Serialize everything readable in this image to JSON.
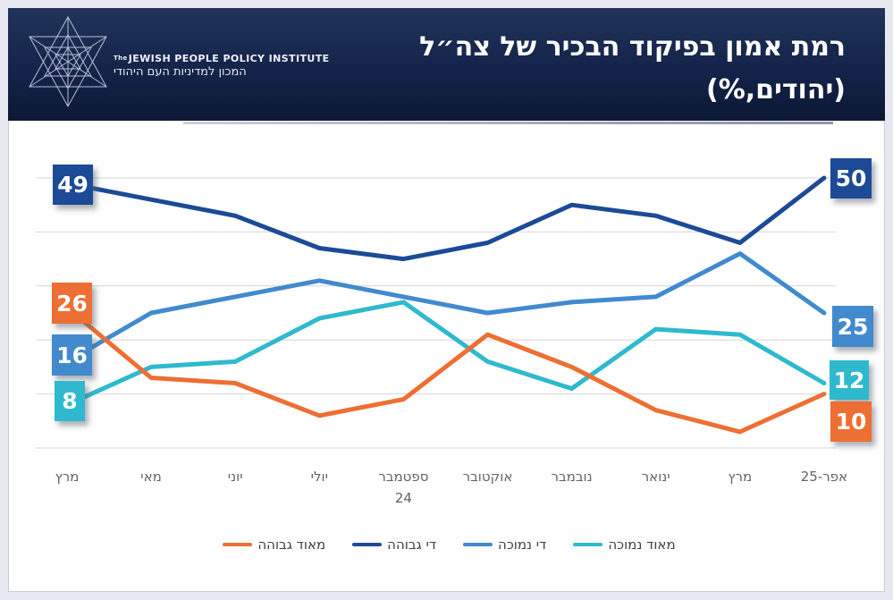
{
  "page": {
    "background": "#e7e8ef",
    "slide_border": "#c9cdd7"
  },
  "header": {
    "title_line1": "רמת אמון בפיקוד הבכיר של צה״ל",
    "title_line2": "(יהודים,%)",
    "logo_text_the": "The",
    "logo_text_en": "JEWISH PEOPLE POLICY INSTITUTE",
    "logo_text_he": "המכון למדיניות העם היהודי"
  },
  "colors": {
    "navy": "#1c4a96",
    "blue": "#418ace",
    "cyan": "#2fb9ce",
    "orange": "#ed6f33",
    "grid": "#d6d6d6",
    "axis_text": "#636363",
    "legend_text": "#404040",
    "page_bg": "#e7e8ef",
    "header_top": "#223459",
    "header_bottom": "#0c1834"
  },
  "chart_data": {
    "type": "line",
    "title": "רמת אמון בפיקוד הבכיר של צה״ל (יהודים,%)",
    "xlabel": "",
    "ylabel": "",
    "ylim": [
      0,
      50
    ],
    "gridline_values": [
      0,
      10,
      20,
      30,
      40,
      50
    ],
    "grid": true,
    "legend_position": "bottom",
    "categories": [
      "מרץ",
      "מאי",
      "יוני",
      "יולי",
      "ספטמבר",
      "אוקטובר",
      "נובמבר",
      "ינואר",
      "מרץ",
      "אפר-25"
    ],
    "category_note": {
      "index": 4,
      "text": "24"
    },
    "series": [
      {
        "key": "quite-high",
        "name": "די גבוהה",
        "color_key": "navy",
        "values": [
          49,
          46,
          43,
          37,
          35,
          38,
          45,
          43,
          38,
          50
        ]
      },
      {
        "key": "quite-low",
        "name": "די נמוכה",
        "color_key": "blue",
        "values": [
          16,
          25,
          28,
          31,
          28,
          25,
          27,
          28,
          36,
          25
        ]
      },
      {
        "key": "very-low",
        "name": "מאוד נמוכה",
        "color_key": "cyan",
        "values": [
          8,
          15,
          16,
          24,
          27,
          16,
          11,
          22,
          21,
          12
        ]
      },
      {
        "key": "very-high",
        "name": "מאוד גבוהה",
        "color_key": "orange",
        "values": [
          26,
          13,
          12,
          6,
          9,
          21,
          15,
          7,
          3,
          10
        ]
      }
    ],
    "legend_rtl_order": [
      "very-low",
      "quite-low",
      "quite-high",
      "very-high"
    ],
    "endpoint_labels": {
      "left": [
        "49",
        "26",
        "16",
        "8"
      ],
      "right": [
        "50",
        "25",
        "12",
        "10"
      ]
    }
  }
}
